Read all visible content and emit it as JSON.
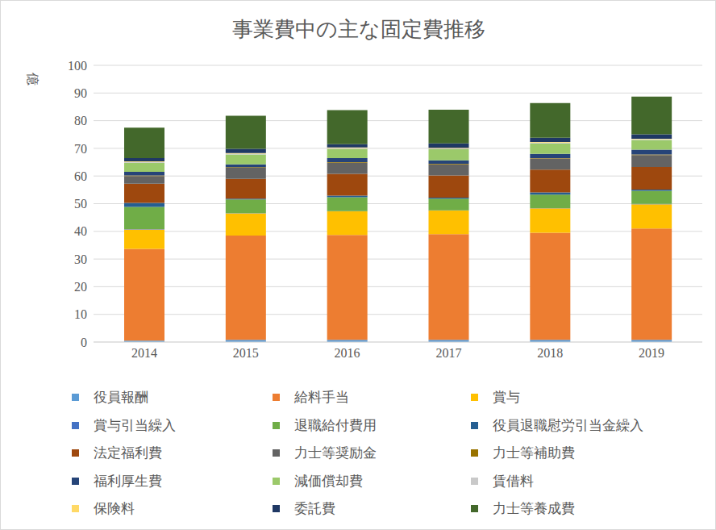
{
  "chart_data": {
    "type": "bar",
    "title": "事業費中の主な固定費推移",
    "y_label": "億",
    "categories": [
      "2014",
      "2015",
      "2016",
      "2017",
      "2018",
      "2019"
    ],
    "ylim": [
      0,
      100
    ],
    "yticks": [
      0,
      10,
      20,
      30,
      40,
      50,
      60,
      70,
      80,
      90,
      100
    ],
    "grid": true,
    "stacked": true,
    "legend": "bottom",
    "series": [
      {
        "name": "役員報酬",
        "color": "#5b9bd5",
        "values": [
          0.5,
          0.8,
          0.8,
          0.8,
          0.8,
          0.8
        ]
      },
      {
        "name": "給料手当",
        "color": "#ed7d31",
        "values": [
          33.2,
          37.7,
          37.9,
          38.2,
          38.7,
          40.2
        ]
      },
      {
        "name": "賞与",
        "color": "#ffc000",
        "values": [
          7.0,
          8.0,
          8.5,
          8.5,
          8.8,
          8.8
        ]
      },
      {
        "name": "賞与引当繰入",
        "color": "#4472c4",
        "values": [
          0.1,
          0.1,
          0.1,
          0.1,
          0.1,
          0.1
        ]
      },
      {
        "name": "退職給付費用",
        "color": "#70ad47",
        "values": [
          8.0,
          4.9,
          5.0,
          4.2,
          4.9,
          4.8
        ]
      },
      {
        "name": "役員退職慰労引当金繰入",
        "color": "#255e91",
        "values": [
          1.5,
          0.3,
          0.6,
          0.4,
          0.8,
          0.4
        ]
      },
      {
        "name": "法定福利費",
        "color": "#9e480e",
        "values": [
          6.9,
          7.2,
          7.9,
          8.0,
          8.2,
          8.2
        ]
      },
      {
        "name": "力士等奨励金",
        "color": "#636363",
        "values": [
          2.8,
          4.0,
          4.0,
          4.0,
          4.0,
          4.3
        ]
      },
      {
        "name": "力士等補助費",
        "color": "#997300",
        "values": [
          0.2,
          0.2,
          0.2,
          0.2,
          0.2,
          0.2
        ]
      },
      {
        "name": "福利厚生費",
        "color": "#264478",
        "values": [
          1.3,
          1.0,
          1.5,
          1.3,
          1.5,
          1.7
        ]
      },
      {
        "name": "減価償却費",
        "color": "#9bc96a",
        "values": [
          3.3,
          3.6,
          3.3,
          4.0,
          3.8,
          3.5
        ]
      },
      {
        "name": "賃借料",
        "color": "#c9c9c9",
        "values": [
          0.3,
          0.3,
          0.3,
          0.3,
          0.3,
          0.3
        ]
      },
      {
        "name": "保険料",
        "color": "#ffd966",
        "values": [
          0.2,
          0.2,
          0.2,
          0.2,
          0.2,
          0.2
        ]
      },
      {
        "name": "委託費",
        "color": "#1f3864",
        "values": [
          1.2,
          1.5,
          1.2,
          1.6,
          1.5,
          1.6
        ]
      },
      {
        "name": "力士等養成費",
        "color": "#43682b",
        "values": [
          11.0,
          12.0,
          12.3,
          12.2,
          12.6,
          13.6
        ]
      }
    ]
  }
}
